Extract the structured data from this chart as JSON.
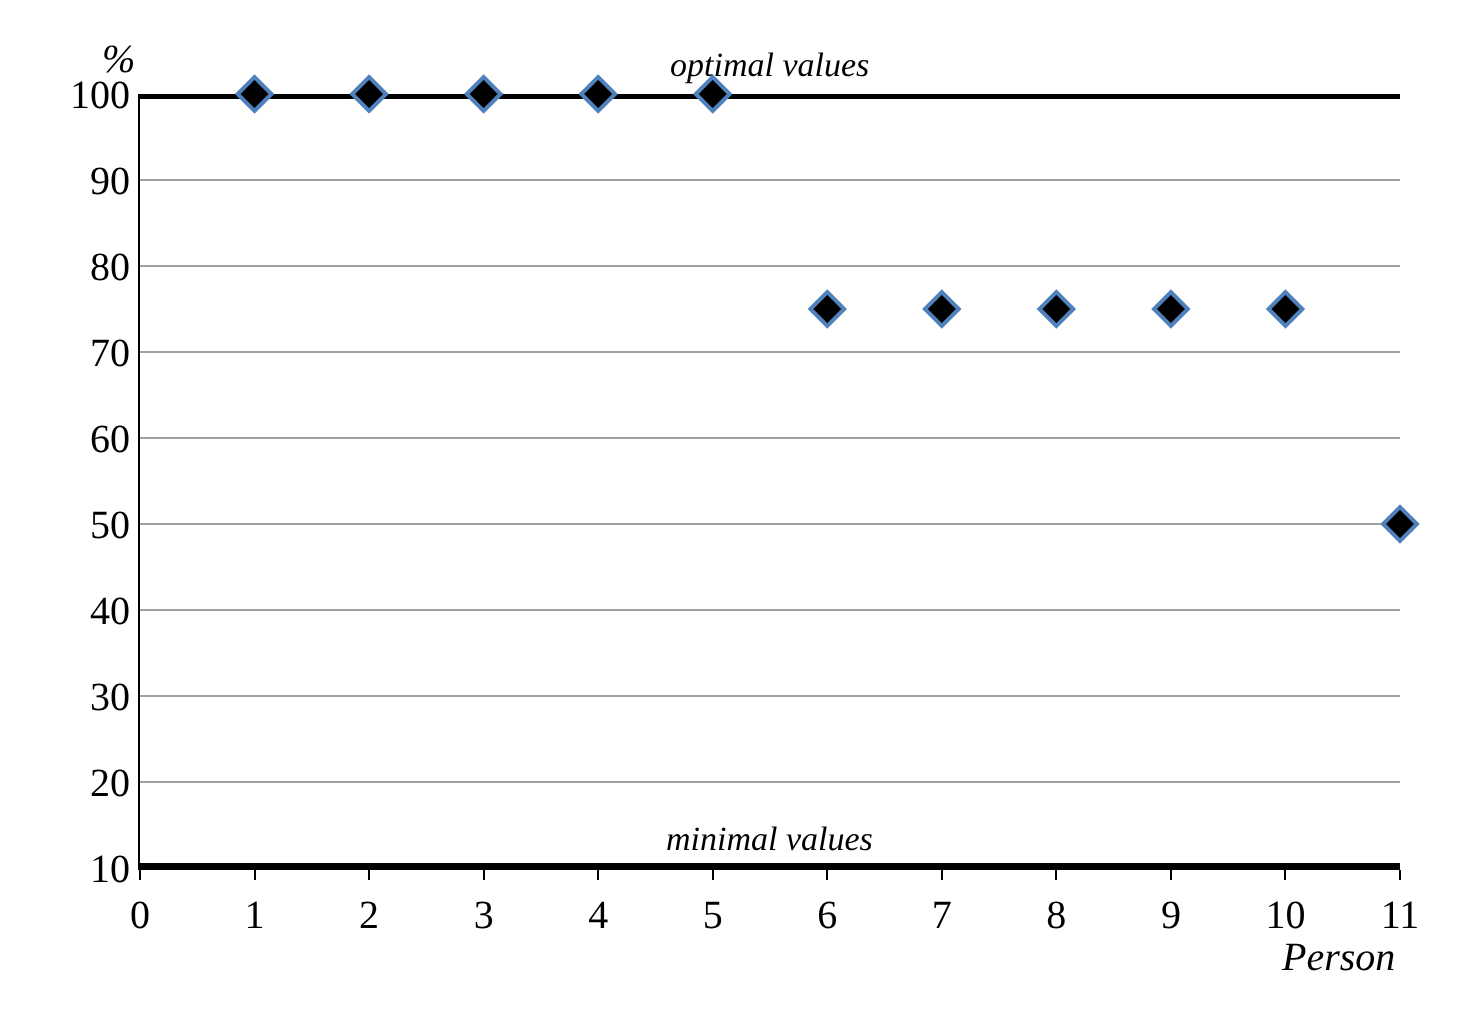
{
  "chart_data": {
    "type": "scatter",
    "xlabel": "Person",
    "ylabel": "%",
    "x": [
      1,
      2,
      3,
      4,
      5,
      6,
      7,
      8,
      9,
      10,
      11
    ],
    "series": [
      {
        "color": "#000000",
        "values": [
          100,
          100,
          100,
          100,
          100,
          75,
          75,
          75,
          75,
          75,
          50
        ]
      }
    ],
    "marker": "diamond",
    "xlim": [
      0,
      11
    ],
    "xticks": [
      0,
      1,
      2,
      3,
      4,
      5,
      6,
      7,
      8,
      9,
      10,
      11
    ],
    "ylim": [
      10,
      100
    ],
    "yticks": [
      10,
      20,
      30,
      40,
      50,
      60,
      70,
      80,
      90,
      100
    ],
    "grid": "y",
    "ref_lines": [
      {
        "axis": "y",
        "value": 100,
        "label": "optimal values",
        "color": "#000000"
      },
      {
        "axis": "y",
        "value": 10,
        "label": "minimal values",
        "color": "#000000"
      }
    ]
  }
}
